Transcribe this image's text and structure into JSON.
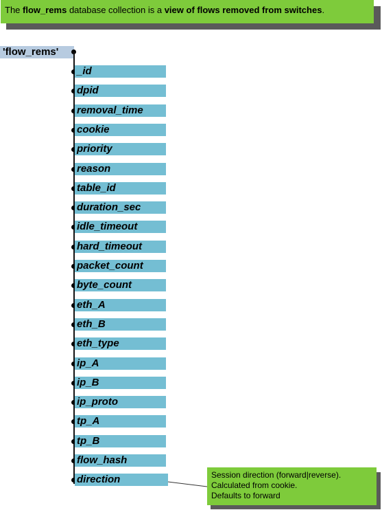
{
  "header_note": {
    "prefix": "The ",
    "collection": "flow_rems",
    "middle": " database collection is a ",
    "emphasis": "view of flows removed from switches",
    "suffix": "."
  },
  "root": {
    "label": "'flow_rems'"
  },
  "fields": [
    "_id",
    "dpid",
    "removal_time",
    "cookie",
    "priority",
    "reason",
    "table_id",
    "duration_sec",
    "idle_timeout",
    "hard_timeout",
    "packet_count",
    "byte_count",
    "eth_A",
    "eth_B",
    "eth_type",
    "ip_A",
    "ip_B",
    "ip_proto",
    "tp_A",
    "tp_B",
    "flow_hash",
    "direction"
  ],
  "annotation": {
    "line1": "Session direction (forward|reverse).",
    "line2": "Calculated from cookie.",
    "line3": "Defaults to forward"
  },
  "colors": {
    "note_green": "#7ecb3b",
    "field_blue": "#74bed3",
    "root_blue": "#b7cbe0"
  }
}
